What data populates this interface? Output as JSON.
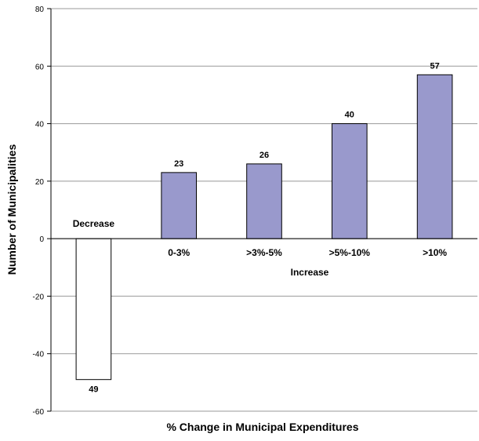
{
  "chart_data": {
    "type": "bar",
    "title": "",
    "xlabel": "% Change in Municipal Expenditures",
    "ylabel": "Number of Municipalities",
    "ylim": [
      -60,
      80
    ],
    "yticks": [
      80,
      60,
      40,
      20,
      0,
      -20,
      -40,
      -60
    ],
    "grid": true,
    "categories": [
      "Decrease",
      "0-3%",
      ">3%-5%",
      ">5%-10%",
      ">10%"
    ],
    "values": [
      -49,
      23,
      26,
      40,
      57
    ],
    "data_labels": [
      "49",
      "23",
      "26",
      "40",
      "57"
    ],
    "group_labels": [
      "Increase"
    ],
    "colors": {
      "decrease_fill": "#ffffff",
      "increase_fill": "#9999cc",
      "bar_stroke": "#000000",
      "gridline": "#999999",
      "axis": "#000000"
    }
  }
}
